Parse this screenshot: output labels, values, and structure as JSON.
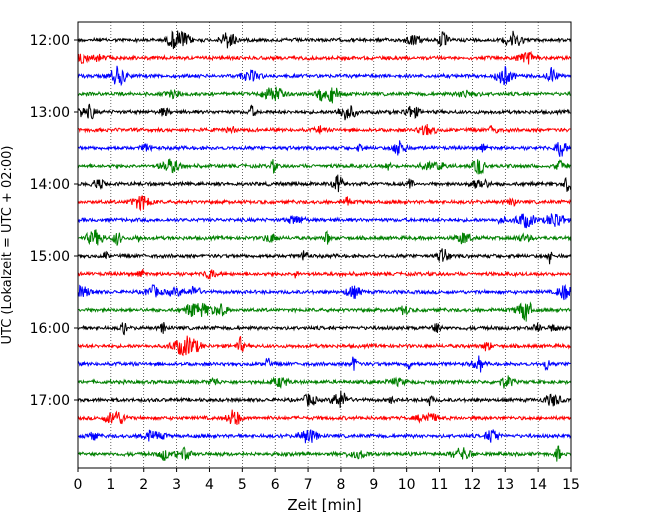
{
  "chart_data": {
    "type": "line",
    "title": "",
    "xlabel": "Zeit  [min]",
    "ylabel": "UTC (Lokalzeit = UTC + 02:00)",
    "xlim": [
      0,
      15
    ],
    "x_ticks": [
      "0",
      "1",
      "2",
      "3",
      "4",
      "5",
      "6",
      "7",
      "8",
      "9",
      "10",
      "11",
      "12",
      "13",
      "14",
      "15"
    ],
    "y_ticks": [
      "12:00",
      "13:00",
      "14:00",
      "15:00",
      "16:00",
      "17:00"
    ],
    "trace_interval_min": 15,
    "start_time": "12:00",
    "trace_count": 24,
    "trace_colors": [
      "#000000",
      "#ff0000",
      "#0000ff",
      "#008000"
    ],
    "grid": "vertical dotted lines at each minute",
    "legend": "none"
  }
}
